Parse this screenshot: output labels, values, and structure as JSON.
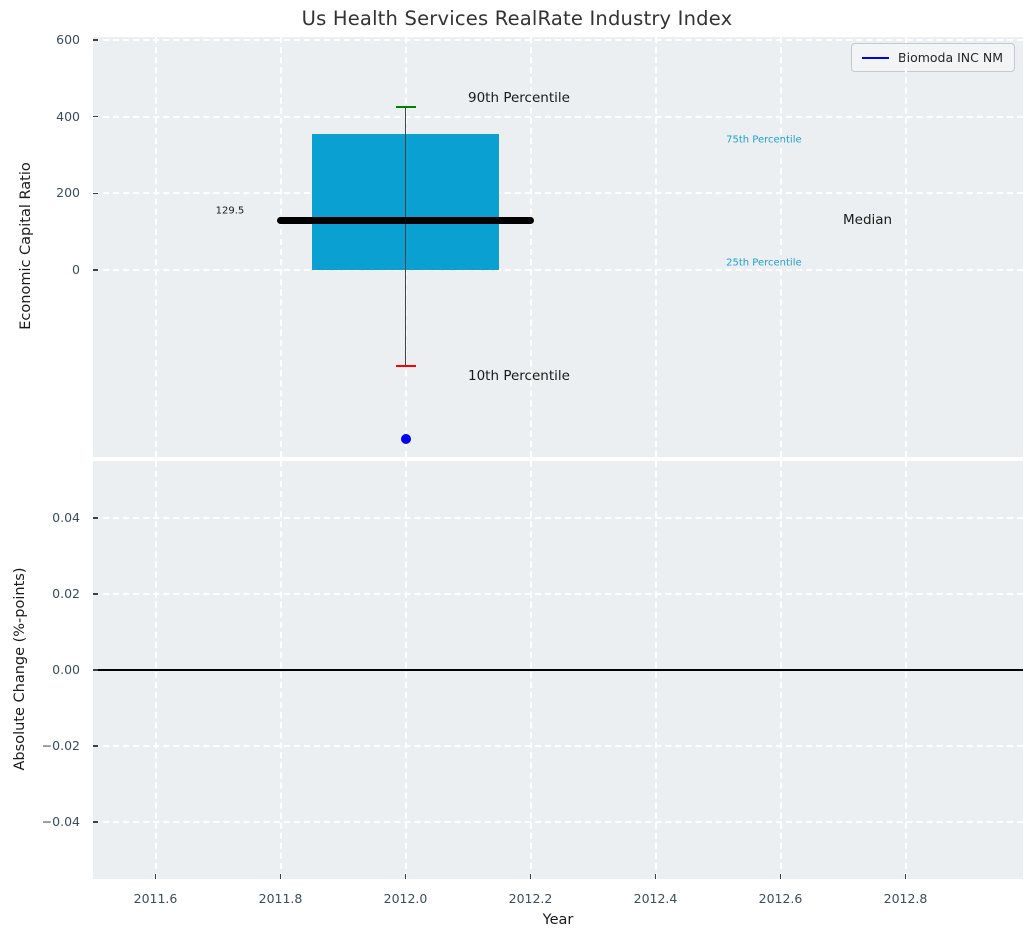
{
  "figure_title": "Us Health Services RealRate Industry Index",
  "legend": {
    "label": "Biomoda INC NM",
    "line_color": "#0000ee"
  },
  "chart_data": [
    {
      "type": "box",
      "title": "Us Health Services RealRate Industry Index",
      "xlabel": "",
      "ylabel": "Economic Capital Ratio",
      "xlim": [
        2011.5,
        2012.988
      ],
      "ylim": [
        -488,
        608
      ],
      "background": "#ebeff1",
      "grid": {
        "color": "#ffffff",
        "style": "dashed"
      },
      "legend_position": "upper right",
      "y_ticks": [
        {
          "v": 600,
          "label": "600"
        },
        {
          "v": 400,
          "label": "400"
        },
        {
          "v": 200,
          "label": "200"
        },
        {
          "v": 0,
          "label": "0"
        }
      ],
      "box": {
        "x": 2012,
        "p90": 425,
        "p75": 355,
        "median": 129.5,
        "p25": 0,
        "p10": -250,
        "median_label": "129.5",
        "box_halfwidth": 0.15,
        "median_halfwidth": 0.205,
        "cap_halfwidth": 0.016,
        "box_color": "#0aa0d2",
        "median_color": "#000000",
        "whisker_color": "#444444",
        "p90_cap_color": "#008000",
        "p10_cap_color": "#ff0000"
      },
      "company_point": {
        "label": "Biomoda INC NM",
        "x": 2012,
        "y": -440,
        "color": "#0000f0"
      },
      "annotations": [
        {
          "text": "90th Percentile",
          "x": 2012.1,
          "y": 450,
          "color": "#1a1a1a",
          "size": 13.5,
          "anchor": "start"
        },
        {
          "text": "75th Percentile",
          "x": 2012.513,
          "y": 340,
          "color": "#1e9fd0",
          "size": 10,
          "anchor": "start"
        },
        {
          "text": "Median",
          "x": 2012.7,
          "y": 129.5,
          "color": "#1a1a1a",
          "size": 13.5,
          "anchor": "start"
        },
        {
          "text": "25th Percentile",
          "x": 2012.513,
          "y": 18,
          "color": "#1e9fd0",
          "size": 10,
          "anchor": "start"
        },
        {
          "text": "10th Percentile",
          "x": 2012.1,
          "y": -276,
          "color": "#1a1a1a",
          "size": 13.5,
          "anchor": "start"
        },
        {
          "text": "129.5",
          "x": 2011.742,
          "y": 155,
          "color": "#1a1a1a",
          "size": 10,
          "anchor": "end"
        }
      ]
    },
    {
      "type": "line",
      "xlabel": "Year",
      "ylabel": "Absolute Change (%-points)",
      "xlim": [
        2011.5,
        2012.988
      ],
      "ylim": [
        -0.055,
        0.055
      ],
      "background": "#ebeff1",
      "grid": {
        "color": "#ffffff",
        "style": "dashed"
      },
      "x_ticks": [
        {
          "v": 2011.6,
          "label": "2011.6"
        },
        {
          "v": 2011.8,
          "label": "2011.8"
        },
        {
          "v": 2012.0,
          "label": "2012.0"
        },
        {
          "v": 2012.2,
          "label": "2012.2"
        },
        {
          "v": 2012.4,
          "label": "2012.4"
        },
        {
          "v": 2012.6,
          "label": "2012.6"
        },
        {
          "v": 2012.8,
          "label": "2012.8"
        }
      ],
      "y_ticks": [
        {
          "v": 0.04,
          "label": "0.04"
        },
        {
          "v": 0.02,
          "label": "0.02"
        },
        {
          "v": 0,
          "label": "0.00"
        },
        {
          "v": -0.02,
          "label": "−0.02"
        },
        {
          "v": -0.04,
          "label": "−0.04"
        }
      ],
      "zero_line": {
        "y": 0,
        "color": "#000000"
      }
    }
  ]
}
